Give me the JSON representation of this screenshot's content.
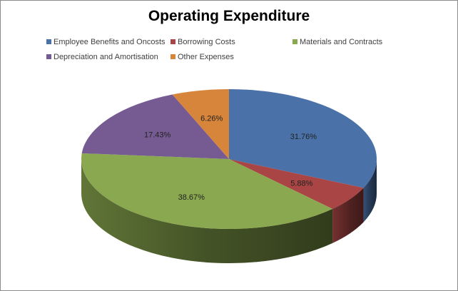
{
  "chart_data": {
    "type": "pie",
    "title": "Operating Expenditure",
    "legend_position": "top",
    "series": [
      {
        "name": "Employee Benefits and Oncosts",
        "value": 31.76,
        "label": "31.76%",
        "color": "#4A72A9"
      },
      {
        "name": "Borrowing Costs",
        "value": 5.88,
        "label": "5.88%",
        "color": "#A94545"
      },
      {
        "name": "Materials and Contracts",
        "value": 38.67,
        "label": "38.67%",
        "color": "#8AA84F"
      },
      {
        "name": "Depreciation and Amortisation",
        "value": 17.43,
        "label": "17.43%",
        "color": "#765B93"
      },
      {
        "name": "Other Expenses",
        "value": 6.26,
        "label": "6.26%",
        "color": "#D6853B"
      }
    ]
  }
}
